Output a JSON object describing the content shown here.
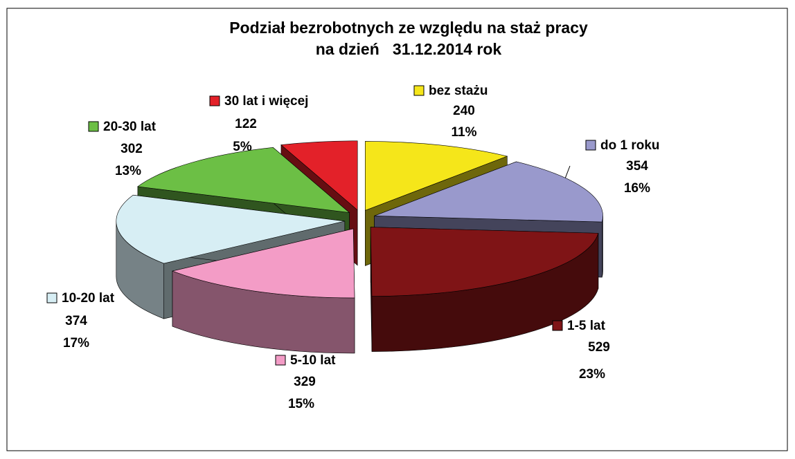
{
  "chart_data": {
    "type": "pie3d",
    "title": [
      "Podział bezrobotnych ze względu na staż pracy",
      "na dzień   31.12.2014 rok"
    ],
    "categories": [
      "bez stażu",
      "do 1 roku",
      "1-5 lat",
      "5-10 lat",
      "10-20 lat",
      "20-30 lat",
      "30 lat i więcej"
    ],
    "values": [
      240,
      354,
      529,
      329,
      374,
      302,
      122
    ],
    "percent_labels": [
      "11%",
      "16%",
      "23%",
      "15%",
      "17%",
      "13%",
      "5%"
    ],
    "colors": [
      "#f5e61a",
      "#9999cc",
      "#7f1416",
      "#f39cc6",
      "#d7eef4",
      "#6cbf45",
      "#e32129"
    ]
  }
}
